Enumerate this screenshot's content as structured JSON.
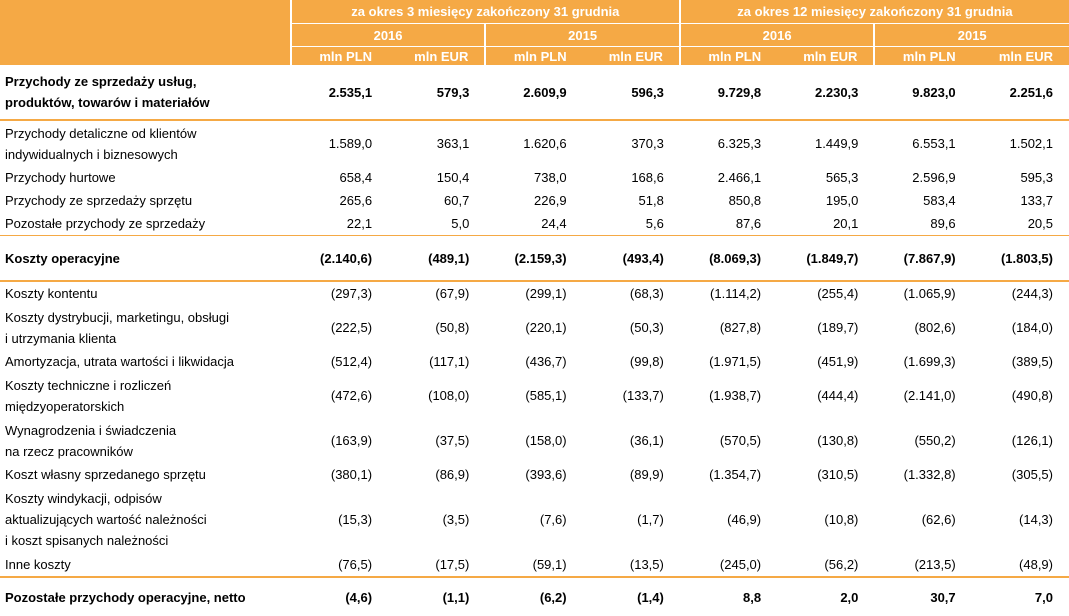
{
  "header": {
    "period_3m": "za okres 3 miesięcy zakończony 31 grudnia",
    "period_12m": "za okres 12 miesięcy zakończony 31 grudnia",
    "years": [
      "2016",
      "2015",
      "2016",
      "2015"
    ],
    "units": [
      "mln PLN",
      "mln EUR",
      "mln PLN",
      "mln EUR",
      "mln PLN",
      "mln EUR",
      "mln PLN",
      "mln EUR"
    ]
  },
  "rows": [
    {
      "label": [
        "Przychody ze sprzedaży usług,",
        "produktów, towarów i materiałów"
      ],
      "values": [
        "2.535,1",
        "579,3",
        "2.609,9",
        "596,3",
        "9.729,8",
        "2.230,3",
        "9.823,0",
        "2.251,6"
      ]
    },
    {
      "label": [
        "Przychody detaliczne od klientów",
        "indywidualnych i biznesowych"
      ],
      "values": [
        "1.589,0",
        "363,1",
        "1.620,6",
        "370,3",
        "6.325,3",
        "1.449,9",
        "6.553,1",
        "1.502,1"
      ]
    },
    {
      "label": [
        "Przychody hurtowe"
      ],
      "values": [
        "658,4",
        "150,4",
        "738,0",
        "168,6",
        "2.466,1",
        "565,3",
        "2.596,9",
        "595,3"
      ]
    },
    {
      "label": [
        "Przychody ze sprzedaży sprzętu"
      ],
      "values": [
        "265,6",
        "60,7",
        "226,9",
        "51,8",
        "850,8",
        "195,0",
        "583,4",
        "133,7"
      ]
    },
    {
      "label": [
        "Pozostałe przychody ze sprzedaży"
      ],
      "values": [
        "22,1",
        "5,0",
        "24,4",
        "5,6",
        "87,6",
        "20,1",
        "89,6",
        "20,5"
      ]
    },
    {
      "label": [
        "Koszty operacyjne"
      ],
      "values": [
        "(2.140,6)",
        "(489,1)",
        "(2.159,3)",
        "(493,4)",
        "(8.069,3)",
        "(1.849,7)",
        "(7.867,9)",
        "(1.803,5)"
      ]
    },
    {
      "label": [
        "Koszty kontentu"
      ],
      "values": [
        "(297,3)",
        "(67,9)",
        "(299,1)",
        "(68,3)",
        "(1.114,2)",
        "(255,4)",
        "(1.065,9)",
        "(244,3)"
      ]
    },
    {
      "label": [
        "Koszty dystrybucji, marketingu, obsługi",
        "i utrzymania klienta"
      ],
      "values": [
        "(222,5)",
        "(50,8)",
        "(220,1)",
        "(50,3)",
        "(827,8)",
        "(189,7)",
        "(802,6)",
        "(184,0)"
      ]
    },
    {
      "label": [
        "Amortyzacja, utrata wartości i likwidacja"
      ],
      "values": [
        "(512,4)",
        "(117,1)",
        "(436,7)",
        "(99,8)",
        "(1.971,5)",
        "(451,9)",
        "(1.699,3)",
        "(389,5)"
      ]
    },
    {
      "label": [
        "Koszty techniczne i rozliczeń",
        "międzyoperatorskich"
      ],
      "values": [
        "(472,6)",
        "(108,0)",
        "(585,1)",
        "(133,7)",
        "(1.938,7)",
        "(444,4)",
        "(2.141,0)",
        "(490,8)"
      ]
    },
    {
      "label": [
        "Wynagrodzenia i świadczenia",
        "na rzecz pracowników"
      ],
      "values": [
        "(163,9)",
        "(37,5)",
        "(158,0)",
        "(36,1)",
        "(570,5)",
        "(130,8)",
        "(550,2)",
        "(126,1)"
      ]
    },
    {
      "label": [
        "Koszt własny sprzedanego sprzętu"
      ],
      "values": [
        "(380,1)",
        "(86,9)",
        "(393,6)",
        "(89,9)",
        "(1.354,7)",
        "(310,5)",
        "(1.332,8)",
        "(305,5)"
      ]
    },
    {
      "label": [
        "Koszty windykacji, odpisów",
        "aktualizujących wartość należności",
        "i koszt spisanych należności"
      ],
      "values": [
        "(15,3)",
        "(3,5)",
        "(7,6)",
        "(1,7)",
        "(46,9)",
        "(10,8)",
        "(62,6)",
        "(14,3)"
      ]
    },
    {
      "label": [
        "Inne koszty"
      ],
      "values": [
        "(76,5)",
        "(17,5)",
        "(59,1)",
        "(13,5)",
        "(245,0)",
        "(56,2)",
        "(213,5)",
        "(48,9)"
      ]
    },
    {
      "label": [
        "Pozostałe przychody operacyjne, netto"
      ],
      "values": [
        "(4,6)",
        "(1,1)",
        "(6,2)",
        "(1,4)",
        "8,8",
        "2,0",
        "30,7",
        "7,0"
      ]
    }
  ],
  "colors": {
    "accent": "#f5a945",
    "header_text": "#ffffff"
  }
}
